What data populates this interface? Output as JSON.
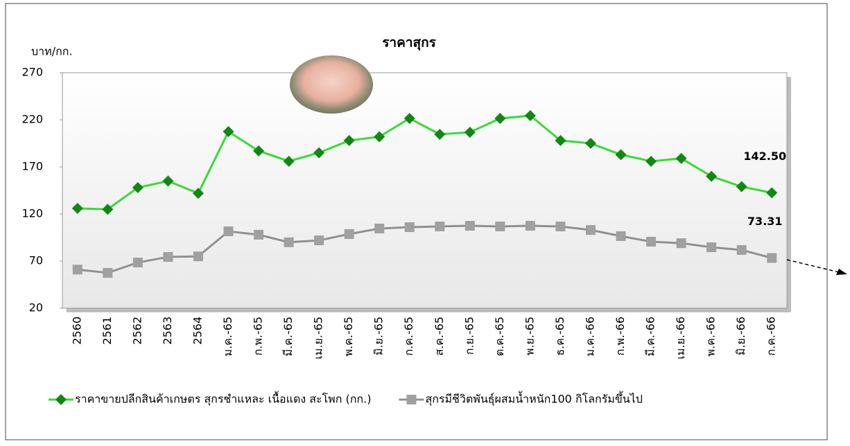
{
  "chart_data": {
    "type": "line",
    "title": "ราคาสุกร",
    "y_label": "บาท/กก.",
    "categories": [
      "2560",
      "2561",
      "2562",
      "2563",
      "2564",
      "ม.ค.-65",
      "ก.พ.-65",
      "มี.ค.-65",
      "เม.ย.-65",
      "พ.ค.-65",
      "มิ.ย.-65",
      "ก.ค.-65",
      "ส.ค.-65",
      "ก.ย.-65",
      "ต.ค.-65",
      "พ.ย.-65",
      "ธ.ค.-65",
      "ม.ค.-66",
      "ก.พ.-66",
      "มี.ค.-66",
      "เม.ย.-66",
      "พ.ค.-66",
      "มิ.ย.-66",
      "ก.ค.-66"
    ],
    "series": [
      {
        "name": "ราคาขายปลีกสินค้าเกษตร สุกรชำแหละ เนื้อแดง สะโพก (กก.)",
        "color": "#33dd33",
        "marker": "diamond",
        "marker_color": "#118811",
        "values": [
          126,
          125,
          148,
          155,
          142,
          207.5,
          187,
          176,
          185,
          198,
          202,
          221.5,
          204.6,
          206.8,
          221.5,
          224.4,
          198,
          195,
          183,
          176,
          179,
          160,
          149,
          142.5
        ],
        "value_labels": [
          null,
          null,
          null,
          null,
          null,
          null,
          null,
          null,
          null,
          null,
          null,
          null,
          null,
          null,
          null,
          null,
          null,
          null,
          null,
          null,
          null,
          null,
          null,
          "142.50"
        ]
      },
      {
        "name": "สุกรมีชีวิตพันธุ์ผสมน้ำหนัก100 กิโลกรัมขึ้นไป",
        "color": "#909090",
        "marker": "square",
        "marker_color": "#a0a0a0",
        "values": [
          61,
          57.5,
          68.5,
          74.4,
          75,
          101.6,
          98,
          90,
          92,
          98.7,
          104.6,
          106,
          106.8,
          107.5,
          106.8,
          107.5,
          106.8,
          103,
          96.5,
          90.6,
          89,
          84.7,
          81.8,
          73.31
        ],
        "value_labels": [
          null,
          null,
          null,
          null,
          null,
          null,
          null,
          null,
          null,
          null,
          null,
          null,
          null,
          null,
          null,
          null,
          null,
          null,
          null,
          null,
          null,
          null,
          null,
          "73.31"
        ]
      }
    ],
    "ylim": [
      20,
      270
    ],
    "yticks": [
      20,
      70,
      120,
      170,
      220,
      270
    ],
    "grid": false,
    "legend": "bottom"
  }
}
